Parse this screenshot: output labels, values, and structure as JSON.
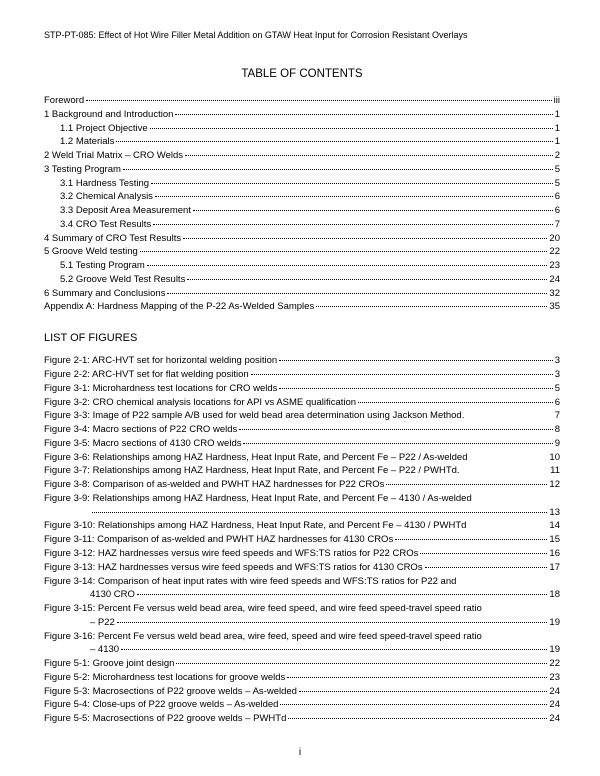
{
  "header": "STP-PT-085:  Effect of Hot Wire Filler Metal Addition on GTAW Heat Input for Corrosion Resistant Overlays",
  "title": "TABLE OF CONTENTS",
  "page_number": "i",
  "toc": [
    {
      "indent": 0,
      "label": "Foreword",
      "page": "iii",
      "dots": true
    },
    {
      "indent": 0,
      "label": "1    Background and Introduction",
      "page": "1",
      "dots": true
    },
    {
      "indent": 1,
      "label": "1.1 Project Objective",
      "page": "1",
      "dots": true
    },
    {
      "indent": 1,
      "label": "1.2 Materials",
      "page": "1",
      "dots": true
    },
    {
      "indent": 0,
      "label": "2    Weld Trial Matrix – CRO Welds",
      "page": "2",
      "dots": true
    },
    {
      "indent": 0,
      "label": "3    Testing Program",
      "page": "5",
      "dots": true
    },
    {
      "indent": 1,
      "label": "3.1 Hardness Testing",
      "page": "5",
      "dots": true
    },
    {
      "indent": 1,
      "label": "3.2 Chemical Analysis",
      "page": "6",
      "dots": true
    },
    {
      "indent": 1,
      "label": "3.3 Deposit Area Measurement",
      "page": "6",
      "dots": true
    },
    {
      "indent": 1,
      "label": "3.4 CRO Test Results",
      "page": "7",
      "dots": true
    },
    {
      "indent": 0,
      "label": "4    Summary of CRO Test Results",
      "page": "20",
      "dots": true
    },
    {
      "indent": 0,
      "label": "5    Groove Weld testing",
      "page": "22",
      "dots": true
    },
    {
      "indent": 1,
      "label": "5.1 Testing Program",
      "page": "23",
      "dots": true
    },
    {
      "indent": 1,
      "label": "5.2 Groove Weld Test Results",
      "page": "24",
      "dots": true
    },
    {
      "indent": 0,
      "label": "6    Summary and Conclusions",
      "page": "32",
      "dots": true
    },
    {
      "indent": 0,
      "label": "Appendix A:  Hardness Mapping of the P-22 As-Welded Samples",
      "page": "35",
      "dots": true
    }
  ],
  "figures_heading": "LIST OF FIGURES",
  "figures": [
    {
      "label": "Figure 2-1:  ARC-HVT set for horizontal welding position",
      "page": "3",
      "dots": true
    },
    {
      "label": "Figure 2-2:  ARC-HVT set for flat welding position",
      "page": "3",
      "dots": true
    },
    {
      "label": "Figure 3-1:  Microhardness test locations for CRO welds",
      "page": "5",
      "dots": true
    },
    {
      "label": "Figure 3-2:  CRO chemical analysis locations for API vs ASME qualification",
      "page": "6",
      "dots": true
    },
    {
      "label": "Figure 3-3:  Image of P22 sample A/B used for weld bead area determination using Jackson Method.",
      "page": "7",
      "dots": false
    },
    {
      "label": "Figure 3-4:  Macro sections of P22 CRO welds",
      "page": "8",
      "dots": true
    },
    {
      "label": "Figure 3-5:  Macro sections of 4130 CRO welds",
      "page": "9",
      "dots": true
    },
    {
      "label": "Figure 3-6:  Relationships among HAZ Hardness, Heat Input Rate, and Percent Fe – P22 / As-welded",
      "page": "10",
      "dots": false
    },
    {
      "label": "Figure 3-7:  Relationships among HAZ Hardness, Heat Input Rate, and Percent Fe – P22 / PWHTd.",
      "page": "11",
      "dots": false
    },
    {
      "label": "Figure 3-8:  Comparison of as-welded and PWHT HAZ hardnesses for P22 CROs",
      "page": "12",
      "dots": true
    },
    {
      "label": "Figure 3-9:  Relationships among HAZ Hardness, Heat Input Rate, and Percent Fe – 4130 / As-welded",
      "page": "",
      "dots": false,
      "cont": true,
      "cont_label": "",
      "cont_page": "13"
    },
    {
      "label": "Figure 3-10:  Relationships among HAZ Hardness, Heat Input Rate, and Percent Fe – 4130 / PWHTd",
      "page": "14",
      "dots": false
    },
    {
      "label": "Figure 3-11:  Comparison of as-welded and PWHT HAZ hardnesses for 4130 CROs",
      "page": "15",
      "dots": true
    },
    {
      "label": "Figure 3-12:  HAZ hardnesses versus wire feed speeds and WFS:TS ratios for P22 CROs",
      "page": "16",
      "dots": true
    },
    {
      "label": "Figure 3-13:  HAZ hardnesses versus wire feed speeds and WFS:TS ratios for 4130 CROs",
      "page": "17",
      "dots": true
    },
    {
      "label": "Figure 3-14:  Comparison of heat input rates with wire feed speeds and WFS:TS ratios for P22 and",
      "page": "",
      "dots": false,
      "cont": true,
      "cont_label": "4130 CRO",
      "cont_page": "18"
    },
    {
      "label": "Figure 3-15:  Percent Fe versus weld bead area, wire feed speed, and wire feed speed-travel speed ratio",
      "page": "",
      "dots": false,
      "cont": true,
      "cont_label": "– P22",
      "cont_page": "19"
    },
    {
      "label": "Figure 3-16:  Percent Fe versus weld bead area, wire feed, speed and wire feed speed-travel speed ratio",
      "page": "",
      "dots": false,
      "cont": true,
      "cont_label": "– 4130",
      "cont_page": "19"
    },
    {
      "label": "Figure 5-1:  Groove joint design",
      "page": "22",
      "dots": true
    },
    {
      "label": "Figure 5-2:  Microhardness test locations for groove welds",
      "page": "23",
      "dots": true
    },
    {
      "label": "Figure 5-3:  Macrosections of P22 groove welds – As-welded",
      "page": "24",
      "dots": true
    },
    {
      "label": "Figure 5-4:  Close-ups of P22 groove welds – As-welded",
      "page": "24",
      "dots": true
    },
    {
      "label": "Figure 5-5:  Macrosections of P22 groove welds – PWHTd",
      "page": "24",
      "dots": true
    }
  ]
}
